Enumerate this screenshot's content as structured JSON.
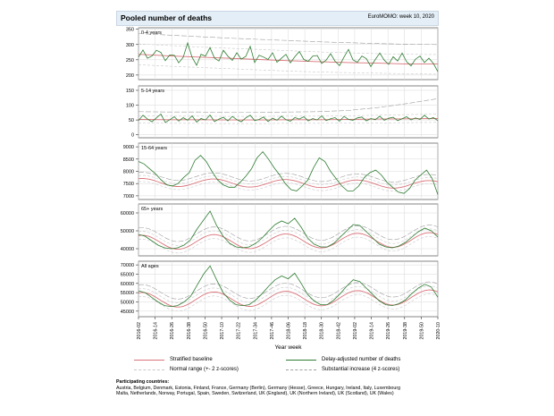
{
  "header": {
    "title": "Pooled number of deaths",
    "source": "EuroMOMO: week 10, 2020"
  },
  "chart_data": {
    "type": "line",
    "x_axis": {
      "label": "Year week",
      "ticks": [
        "2016-02",
        "2016-14",
        "2016-26",
        "2016-38",
        "2016-50",
        "2017-10",
        "2017-22",
        "2017-34",
        "2017-46",
        "2018-06",
        "2018-18",
        "2018-30",
        "2018-42",
        "2019-02",
        "2019-14",
        "2019-26",
        "2019-38",
        "2019-50",
        "2020-10"
      ],
      "first_week": "2016-02",
      "last_week": "2020-10",
      "grid": true
    },
    "panels": [
      {
        "label": "0-4 years",
        "yticks": [
          200,
          250,
          300,
          350
        ],
        "ylim": [
          185,
          355
        ],
        "series": {
          "baseline": [
            268,
            263,
            259,
            255,
            251,
            247,
            244,
            241,
            239,
            236,
            236
          ],
          "normal_upper": [
            302,
            297,
            292,
            288,
            284,
            280,
            276,
            273,
            270,
            268,
            267
          ],
          "normal_lower": [
            234,
            229,
            225,
            221,
            217,
            213,
            210,
            208,
            206,
            204,
            203
          ],
          "substantial_upper": [
            336,
            331,
            326,
            321,
            317,
            313,
            309,
            306,
            303,
            301,
            300
          ],
          "delay_adjusted": [
            259,
            282,
            255,
            262,
            281,
            274,
            247,
            266,
            265,
            240,
            258,
            305,
            258,
            232,
            268,
            262,
            290,
            256,
            246,
            281,
            262,
            248,
            273,
            252,
            261,
            294,
            241,
            265,
            259,
            251,
            273,
            242,
            255,
            268,
            240,
            260,
            277,
            251,
            245,
            262,
            264,
            238,
            249,
            270,
            245,
            231,
            259,
            284,
            250,
            242,
            262,
            254,
            228,
            251,
            272,
            249,
            235,
            260,
            246,
            272,
            244,
            230,
            252,
            262,
            241,
            255,
            238,
            211
          ]
        }
      },
      {
        "label": "5-14 years",
        "yticks": [
          0,
          50,
          100,
          150
        ],
        "ylim": [
          -10,
          165
        ],
        "series": {
          "baseline": [
            52,
            51,
            51,
            50,
            50,
            51,
            51,
            52,
            53,
            54,
            55
          ],
          "normal_upper": [
            64,
            63,
            63,
            62,
            62,
            63,
            63,
            64,
            66,
            68,
            70
          ],
          "normal_lower": [
            40,
            39,
            39,
            38,
            38,
            39,
            39,
            40,
            40,
            41,
            42
          ],
          "substantial_upper": [
            78,
            77,
            77,
            76,
            76,
            77,
            78,
            82,
            92,
            106,
            122
          ],
          "delay_adjusted": [
            48,
            66,
            53,
            44,
            57,
            70,
            42,
            51,
            61,
            46,
            58,
            49,
            64,
            43,
            55,
            50,
            67,
            45,
            53,
            59,
            47,
            62,
            51,
            44,
            57,
            66,
            48,
            52,
            60,
            45,
            56,
            49,
            63,
            51,
            46,
            58,
            53,
            61,
            47,
            55,
            50,
            64,
            48,
            54,
            58,
            46,
            62,
            52,
            49,
            57,
            60,
            47,
            55,
            51,
            63,
            49,
            56,
            59,
            48,
            54,
            61,
            50,
            57,
            52,
            66,
            53,
            58,
            48
          ]
        }
      },
      {
        "label": "15-64 years",
        "yticks": [
          7000,
          7500,
          8000,
          8500,
          9000
        ],
        "ylim": [
          6850,
          9150
        ],
        "seasonal": {
          "mean": 7550,
          "amplitude": 160,
          "trend": -90
        },
        "series": {
          "delay_adjusted": [
            8400,
            8300,
            8100,
            7900,
            7650,
            7450,
            7400,
            7500,
            7750,
            7950,
            8450,
            8650,
            8400,
            8000,
            7650,
            7450,
            7350,
            7350,
            7550,
            7800,
            8100,
            8550,
            8800,
            8500,
            8150,
            7850,
            7500,
            7250,
            7200,
            7400,
            7650,
            8150,
            8550,
            8400,
            8000,
            7700,
            7400,
            7200,
            7200,
            7400,
            7750,
            7950,
            8050,
            7850,
            7550,
            7350,
            7150,
            7100,
            7300,
            7650,
            7850,
            8050,
            7700,
            7050
          ]
        }
      },
      {
        "label": "65+ years",
        "yticks": [
          40000,
          50000,
          60000
        ],
        "ylim": [
          36000,
          65000
        ],
        "seasonal": {
          "mean": 43500,
          "amplitude": 4000,
          "trend": 1500
        },
        "series": {
          "delay_adjusted": [
            48000,
            47000,
            44500,
            42000,
            40500,
            40000,
            40500,
            42000,
            45000,
            51000,
            56000,
            61000,
            53000,
            47000,
            43000,
            41000,
            40500,
            41000,
            43000,
            46000,
            50000,
            53500,
            55500,
            54000,
            57000,
            52000,
            46000,
            42500,
            41000,
            41000,
            43000,
            46500,
            50000,
            53500,
            53000,
            49500,
            46000,
            42500,
            41000,
            40500,
            41500,
            43500,
            46500,
            49500,
            51500,
            50000,
            46500
          ]
        }
      },
      {
        "label": "All ages",
        "yticks": [
          45000,
          50000,
          55000,
          60000,
          65000,
          70000
        ],
        "ylim": [
          42000,
          72000
        ],
        "seasonal": {
          "mean": 51000,
          "amplitude": 4000,
          "trend": 1500
        },
        "series": {
          "delay_adjusted": [
            56000,
            55000,
            52500,
            50000,
            48000,
            47500,
            48000,
            50000,
            53000,
            59000,
            65000,
            69500,
            62000,
            55000,
            51000,
            48500,
            48000,
            48500,
            51000,
            54500,
            58500,
            62000,
            64000,
            62500,
            65500,
            60000,
            54000,
            50500,
            48500,
            48500,
            51000,
            54500,
            58500,
            62000,
            61000,
            57500,
            54000,
            50500,
            48500,
            48000,
            49000,
            51000,
            54500,
            57500,
            59500,
            58000,
            52500
          ]
        }
      }
    ],
    "legend": {
      "position": "bottom",
      "items": [
        {
          "label": "Stratified baseline",
          "color": "#d9737a",
          "style": "solid"
        },
        {
          "label": "Delay-adjusted number of deaths",
          "color": "#2e7d32",
          "style": "solid"
        },
        {
          "label": "Normal range (+- 2 z-scores)",
          "color": "#c8c8c8",
          "style": "dashed"
        },
        {
          "label": "Substantial increase (4 z-scores)",
          "color": "#9e9e9e",
          "style": "longdash"
        }
      ]
    },
    "colors": {
      "baseline": "#d9737a",
      "delay_adjusted": "#2e7d32",
      "normal_range": "#c8c8c8",
      "substantial": "#9e9e9e",
      "grid": "#d8d8d8",
      "header_bg": "#e4eef6"
    }
  },
  "footer": {
    "heading": "Participating countries:",
    "line1": "Austria, Belgium, Denmark, Estonia, Finland, France, Germany (Berlin), Germany (Hesse), Greece, Hungary, Ireland, Italy, Luxembourg",
    "line2": "Malta, Netherlands, Norway, Portugal, Spain, Sweden, Switzerland, UK (England), UK (Northern Ireland), UK (Scotland), UK (Wales)"
  }
}
